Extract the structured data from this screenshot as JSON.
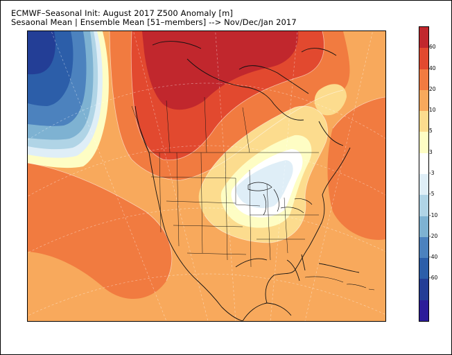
{
  "title": {
    "line1": "ECMWF–Seasonal Init: August 2017 Z500 Anomaly [m]",
    "line2": "Sesaonal Mean | Ensemble Mean [51–members] --> Nov/Dec/Jan 2017"
  },
  "colorbar": {
    "colors": [
      "#c1272d",
      "#e2492f",
      "#f17b40",
      "#f8a95c",
      "#fcdc8e",
      "#fefdc4",
      "#ffffff",
      "#dfeef7",
      "#b0d4e6",
      "#7eb2d2",
      "#4c82be",
      "#2c5ea9",
      "#233e96",
      "#2c1c99"
    ],
    "labels": [
      "60",
      "40",
      "20",
      "10",
      "5",
      "3",
      "-3",
      "-5",
      "-10",
      "-20",
      "-40",
      "-60"
    ]
  }
}
